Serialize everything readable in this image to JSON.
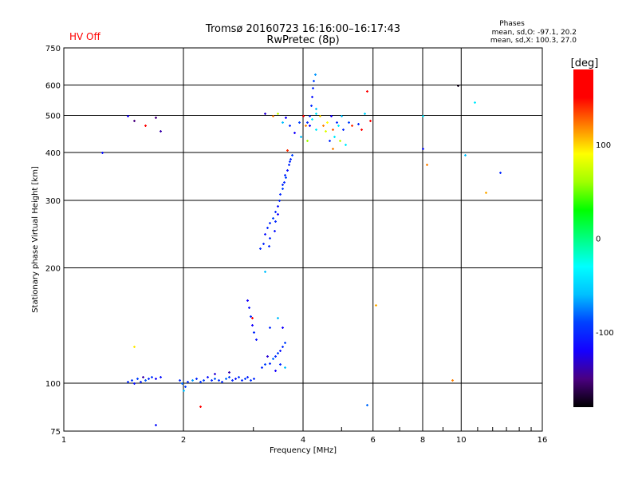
{
  "chart_data": {
    "type": "scatter",
    "title": "Tromsø 20160723 16:16:00–16:17:43",
    "subtitle": "RwPretec (8p)",
    "status_label": "HV Off",
    "stats": {
      "heading": "Phases",
      "line_o": "mean, sd,O: -97.1, 20.2",
      "line_x": "mean, sd,X: 100.3, 27.0"
    },
    "xlabel": "Frequency [MHz]",
    "ylabel": "Stationary phase Virtual Height [km]",
    "xscale": "log",
    "yscale": "log",
    "xlim": [
      1,
      16
    ],
    "ylim": [
      75,
      750
    ],
    "xticks": [
      1,
      2,
      4,
      6,
      8,
      10,
      16
    ],
    "yticks": [
      75,
      100,
      200,
      300,
      400,
      500,
      600,
      750
    ],
    "grid": true,
    "colorbar": {
      "label": "[deg]",
      "range": [
        -180,
        180
      ],
      "ticks": [
        100,
        0,
        -100
      ],
      "stops": [
        "#000000",
        "#4a0080",
        "#1500ff",
        "#0040ff",
        "#00c0ff",
        "#00ffff",
        "#00ff80",
        "#00ff00",
        "#a0ff00",
        "#ffff00",
        "#ff8000",
        "#ff0000",
        "#ff0000"
      ]
    },
    "columns": [
      "frequency_MHz",
      "height_km",
      "phase_deg"
    ],
    "points": [
      [
        1.45,
        101,
        -100
      ],
      [
        1.48,
        102,
        -95
      ],
      [
        1.5,
        100,
        -110
      ],
      [
        1.53,
        103,
        -90
      ],
      [
        1.56,
        101,
        -105
      ],
      [
        1.6,
        102,
        -85
      ],
      [
        1.63,
        103,
        -100
      ],
      [
        1.66,
        104,
        -95
      ],
      [
        1.7,
        103,
        -120
      ],
      [
        1.75,
        104,
        -110
      ],
      [
        1.58,
        104,
        -140
      ],
      [
        1.95,
        102,
        -100
      ],
      [
        1.98,
        100,
        -80
      ],
      [
        2.02,
        98,
        -90
      ],
      [
        2.05,
        101,
        -100
      ],
      [
        2.1,
        102,
        -70
      ],
      [
        2.15,
        103,
        -100
      ],
      [
        2.2,
        101,
        -95
      ],
      [
        2.25,
        102,
        -90
      ],
      [
        2.3,
        104,
        -110
      ],
      [
        2.35,
        102,
        -100
      ],
      [
        2.4,
        103,
        -85
      ],
      [
        2.45,
        102,
        -95
      ],
      [
        2.5,
        101,
        -100
      ],
      [
        2.55,
        103,
        -80
      ],
      [
        2.6,
        104,
        -90
      ],
      [
        2.65,
        102,
        -100
      ],
      [
        2.7,
        103,
        -110
      ],
      [
        2.75,
        104,
        -95
      ],
      [
        2.8,
        102,
        -100
      ],
      [
        2.85,
        103,
        -90
      ],
      [
        2.9,
        104,
        -105
      ],
      [
        2.95,
        102,
        -95
      ],
      [
        3.0,
        103,
        -100
      ],
      [
        2.6,
        107,
        -140
      ],
      [
        2.4,
        106,
        -130
      ],
      [
        2.0,
        96,
        -60
      ],
      [
        2.9,
        165,
        -120
      ],
      [
        2.92,
        158,
        -110
      ],
      [
        2.95,
        150,
        -100
      ],
      [
        2.97,
        142,
        -120
      ],
      [
        3.0,
        136,
        -100
      ],
      [
        3.05,
        130,
        -110
      ],
      [
        2.98,
        148,
        160
      ],
      [
        3.15,
        110,
        -100
      ],
      [
        3.2,
        112,
        -90
      ],
      [
        3.3,
        113,
        -100
      ],
      [
        3.35,
        116,
        -80
      ],
      [
        3.4,
        118,
        -100
      ],
      [
        3.45,
        120,
        -90
      ],
      [
        3.5,
        122,
        -110
      ],
      [
        3.55,
        125,
        -100
      ],
      [
        3.6,
        128,
        -90
      ],
      [
        3.5,
        112,
        -100
      ],
      [
        3.6,
        110,
        -60
      ],
      [
        3.4,
        108,
        -120
      ],
      [
        3.3,
        140,
        -100
      ],
      [
        3.45,
        148,
        -60
      ],
      [
        3.55,
        140,
        -120
      ],
      [
        3.2,
        196,
        -60
      ],
      [
        3.25,
        118,
        -130
      ],
      [
        3.12,
        225,
        -100
      ],
      [
        3.18,
        232,
        -100
      ],
      [
        3.2,
        245,
        -110
      ],
      [
        3.25,
        255,
        -100
      ],
      [
        3.3,
        262,
        -100
      ],
      [
        3.35,
        270,
        -90
      ],
      [
        3.4,
        280,
        -100
      ],
      [
        3.45,
        290,
        -110
      ],
      [
        3.48,
        300,
        -100
      ],
      [
        3.5,
        312,
        -100
      ],
      [
        3.55,
        322,
        -90
      ],
      [
        3.58,
        335,
        -100
      ],
      [
        3.6,
        350,
        -100
      ],
      [
        3.65,
        360,
        -110
      ],
      [
        3.68,
        372,
        -100
      ],
      [
        3.72,
        385,
        -100
      ],
      [
        3.75,
        395,
        -90
      ],
      [
        3.3,
        240,
        -100
      ],
      [
        3.4,
        265,
        -100
      ],
      [
        3.45,
        276,
        -120
      ],
      [
        3.55,
        330,
        -100
      ],
      [
        3.62,
        345,
        -90
      ],
      [
        3.7,
        380,
        -100
      ],
      [
        3.28,
        228,
        -100
      ],
      [
        3.38,
        250,
        -110
      ],
      [
        4.1,
        480,
        -100
      ],
      [
        4.15,
        500,
        -100
      ],
      [
        4.18,
        530,
        -100
      ],
      [
        4.2,
        560,
        -110
      ],
      [
        4.22,
        590,
        -100
      ],
      [
        4.25,
        615,
        -90
      ],
      [
        4.28,
        640,
        -70
      ],
      [
        4.15,
        470,
        -120
      ],
      [
        4.3,
        520,
        -60
      ],
      [
        3.2,
        505,
        -130
      ],
      [
        3.35,
        500,
        120
      ],
      [
        3.45,
        505,
        70
      ],
      [
        3.55,
        480,
        -60
      ],
      [
        3.62,
        495,
        -120
      ],
      [
        3.7,
        470,
        -100
      ],
      [
        3.8,
        450,
        -120
      ],
      [
        3.9,
        480,
        -90
      ],
      [
        3.95,
        440,
        -60
      ],
      [
        4.0,
        500,
        160
      ],
      [
        4.05,
        470,
        120
      ],
      [
        4.1,
        430,
        60
      ],
      [
        4.2,
        490,
        -40
      ],
      [
        4.3,
        460,
        -40
      ],
      [
        4.4,
        500,
        100
      ],
      [
        4.5,
        470,
        120
      ],
      [
        4.55,
        455,
        80
      ],
      [
        4.6,
        480,
        90
      ],
      [
        4.65,
        430,
        -100
      ],
      [
        4.7,
        500,
        -120
      ],
      [
        4.75,
        460,
        130
      ],
      [
        4.8,
        440,
        -40
      ],
      [
        4.85,
        480,
        -100
      ],
      [
        4.9,
        470,
        -40
      ],
      [
        4.95,
        430,
        70
      ],
      [
        5.0,
        500,
        -60
      ],
      [
        5.05,
        460,
        -100
      ],
      [
        5.1,
        420,
        -40
      ],
      [
        5.2,
        480,
        -90
      ],
      [
        5.3,
        470,
        140
      ],
      [
        5.5,
        475,
        -100
      ],
      [
        5.6,
        460,
        160
      ],
      [
        5.7,
        505,
        -50
      ],
      [
        5.9,
        485,
        150
      ],
      [
        4.75,
        410,
        120
      ],
      [
        4.3,
        505,
        -40
      ],
      [
        3.65,
        405,
        140
      ],
      [
        1.25,
        400,
        -110
      ],
      [
        1.45,
        500,
        -120
      ],
      [
        1.5,
        485,
        -150
      ],
      [
        1.6,
        470,
        160
      ],
      [
        1.7,
        495,
        -150
      ],
      [
        1.75,
        455,
        -140
      ],
      [
        5.8,
        580,
        170
      ],
      [
        8.0,
        500,
        -40
      ],
      [
        8.0,
        410,
        -110
      ],
      [
        8.2,
        372,
        120
      ],
      [
        9.8,
        600,
        -175
      ],
      [
        10.2,
        395,
        -60
      ],
      [
        10.8,
        540,
        -40
      ],
      [
        11.5,
        315,
        110
      ],
      [
        12.5,
        355,
        -100
      ],
      [
        6.1,
        160,
        110
      ],
      [
        9.5,
        102,
        120
      ],
      [
        5.8,
        88,
        -80
      ],
      [
        1.5,
        125,
        95
      ],
      [
        2.2,
        87,
        160
      ],
      [
        1.7,
        78,
        -110
      ]
    ]
  }
}
